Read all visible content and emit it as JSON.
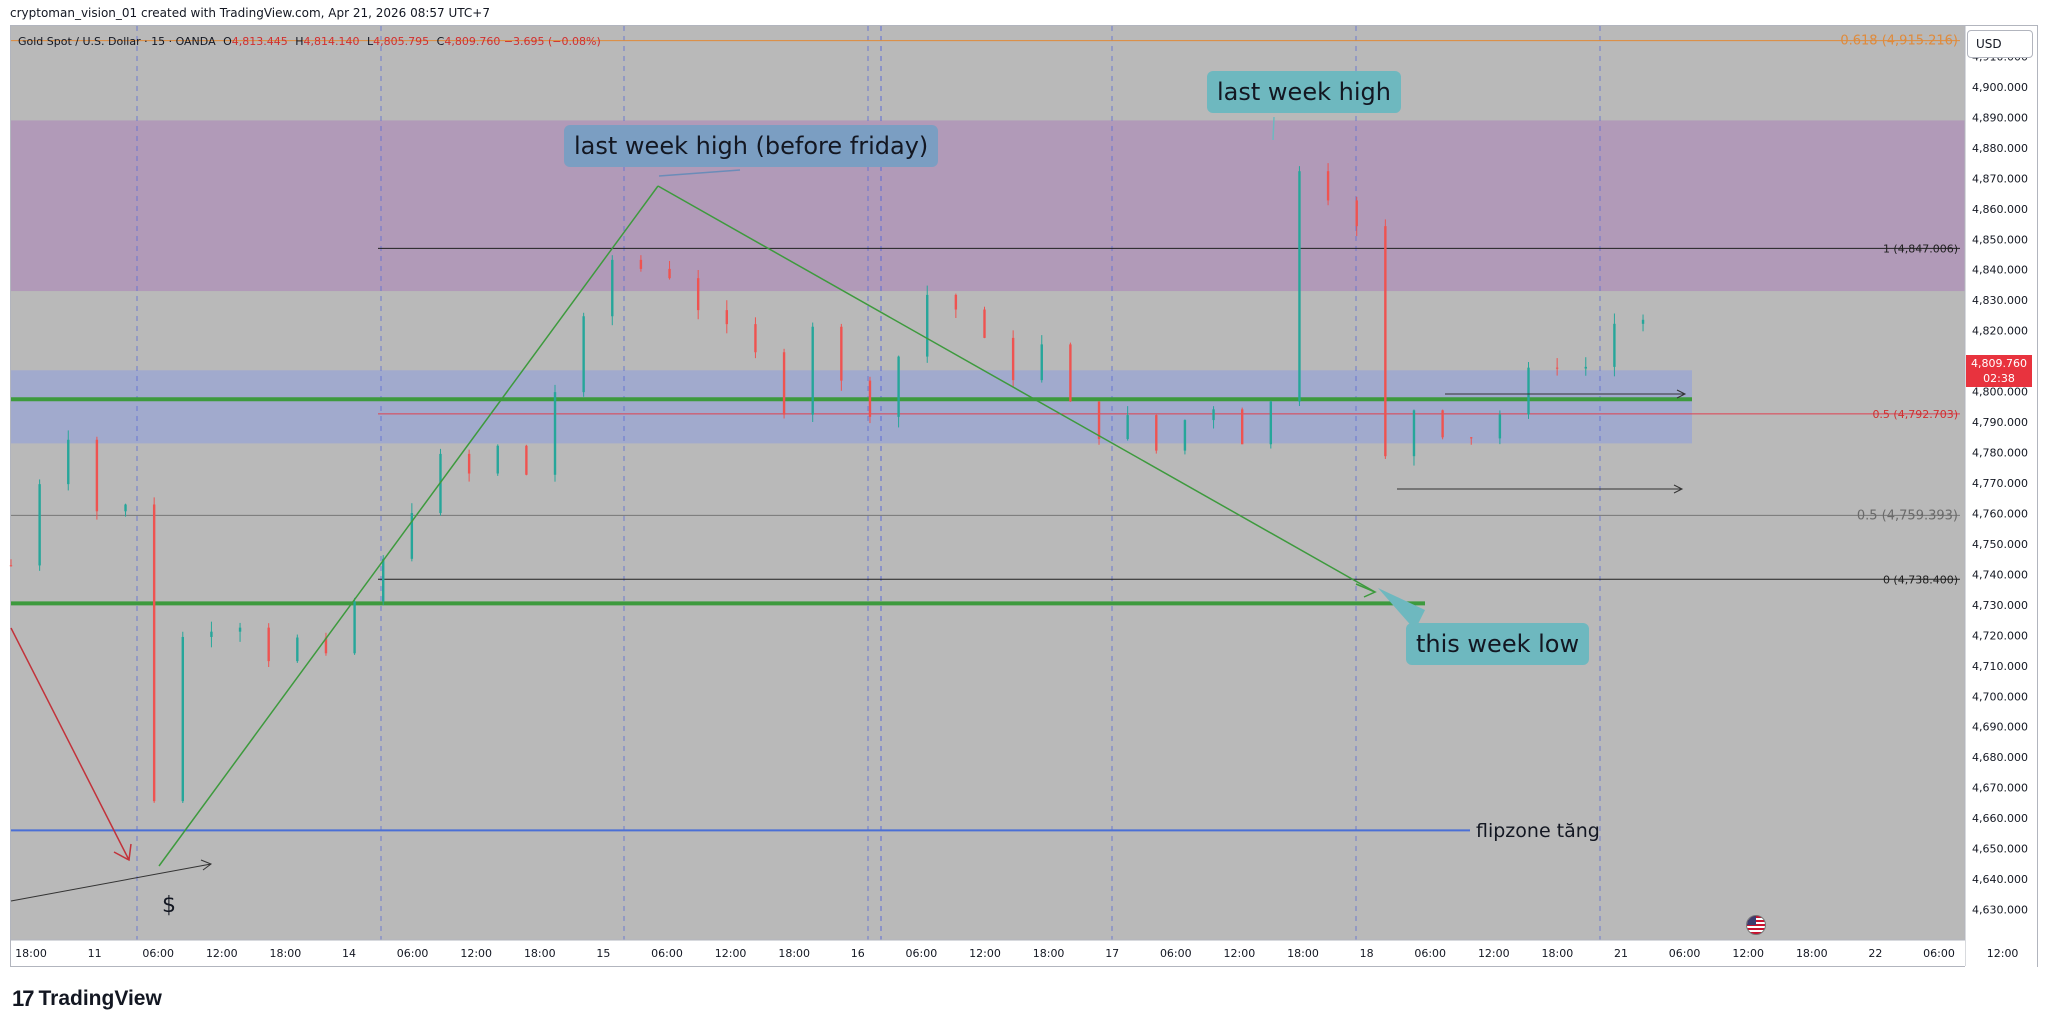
{
  "credit": "cryptoman_vision_01 created with TradingView.com, Apr 21, 2026 08:57 UTC+7",
  "legend": {
    "symbol": "Gold Spot / U.S. Dollar · 15 · OANDA",
    "o_label": "O",
    "o": "4,813.445",
    "h_label": "H",
    "h": "4,814.140",
    "l_label": "L",
    "l": "4,805.795",
    "c_label": "C",
    "c": "4,809.760",
    "change": "−3.695 (−0.08%)"
  },
  "currency_button": "USD",
  "last_price": {
    "price": "4,809.760",
    "countdown": "02:38"
  },
  "annotations": {
    "last_week_high_before_friday": "last week high (before friday)",
    "last_week_high": "last week high",
    "this_week_low": "this week low",
    "flipzone": "flipzone tăng",
    "dollar": "$"
  },
  "brand": "TradingView",
  "icons": {
    "logo": "tradingview-logo-icon",
    "flag": "us-flag-icon"
  },
  "colors": {
    "background": "#b9b9b9",
    "up_candle": "#26a69a",
    "down_candle": "#ef5350",
    "purple_zone": "#b097b8",
    "blue_zone": "#9fa8cf",
    "green_line": "#3d9a3d",
    "flip_line": "#4a6fd6",
    "red_arrow": "#c2323a",
    "last_price": "#e8333e"
  },
  "chart_data": {
    "type": "candlestick",
    "symbol": "Gold Spot / U.S. Dollar",
    "timeframe": "15",
    "ylim": [
      4620,
      4920
    ],
    "y_ticks": [
      "4,630.000",
      "4,640.000",
      "4,650.000",
      "4,660.000",
      "4,670.000",
      "4,680.000",
      "4,690.000",
      "4,700.000",
      "4,710.000",
      "4,720.000",
      "4,730.000",
      "4,740.000",
      "4,750.000",
      "4,760.000",
      "4,770.000",
      "4,780.000",
      "4,790.000",
      "4,800.000",
      "4,810.000",
      "4,820.000",
      "4,830.000",
      "4,840.000",
      "4,850.000",
      "4,860.000",
      "4,870.000",
      "4,880.000",
      "4,890.000",
      "4,900.000",
      "4,910.000"
    ],
    "x_ticks": [
      "18:00",
      "11",
      "06:00",
      "12:00",
      "18:00",
      "14",
      "06:00",
      "12:00",
      "18:00",
      "15",
      "06:00",
      "12:00",
      "18:00",
      "16",
      "06:00",
      "12:00",
      "18:00",
      "17",
      "06:00",
      "12:00",
      "18:00",
      "18",
      "06:00",
      "12:00",
      "18:00",
      "21",
      "06:00",
      "12:00",
      "18:00",
      "22",
      "06:00",
      "12:00"
    ],
    "fib_levels": [
      {
        "label": "0.618 (4,915.216)",
        "value": 4915.216
      },
      {
        "label": "1 (4,847.006)",
        "value": 4847.006
      },
      {
        "label": "0.5 (4,792.703)",
        "value": 4792.703
      },
      {
        "label": "0.5 (4,759.393)",
        "value": 4759.393
      },
      {
        "label": "0 (4,738.400)",
        "value": 4738.4
      }
    ],
    "zones": [
      {
        "name": "purple",
        "top": 4889,
        "bottom": 4833
      },
      {
        "name": "blue",
        "top": 4807,
        "bottom": 4783
      }
    ],
    "horizontal_lines": [
      {
        "name": "green_upper",
        "value": 4797.5
      },
      {
        "name": "green_lower",
        "value": 4730.5
      },
      {
        "name": "flipzone",
        "value": 4656
      }
    ],
    "key_points": [
      {
        "x": "11 06:00",
        "y": 4652
      },
      {
        "x": "15 06:00",
        "y": 4851
      },
      {
        "x": "15 08:00",
        "y": 4869
      },
      {
        "x": "17 18:00",
        "y": 4886
      },
      {
        "x": "18 03:00",
        "y": 4738
      },
      {
        "x": "21 06:00",
        "y": 4831
      },
      {
        "x": "21 08:45",
        "y": 4809.76
      }
    ],
    "close_path": [
      [
        0,
        4743
      ],
      [
        0.8,
        4760
      ],
      [
        2.2,
        4785
      ],
      [
        2.8,
        4788
      ],
      [
        3.5,
        4770
      ],
      [
        4.1,
        4760
      ],
      [
        5.5,
        4770
      ],
      [
        6.0,
        4750
      ],
      [
        6.5,
        4660
      ],
      [
        6.8,
        4652
      ],
      [
        7.4,
        4680
      ],
      [
        8.0,
        4718
      ],
      [
        9.0,
        4720
      ],
      [
        11.0,
        4728
      ],
      [
        13.0,
        4712
      ],
      [
        15.0,
        4722
      ],
      [
        16.0,
        4706
      ],
      [
        17.0,
        4730
      ],
      [
        18.4,
        4742
      ],
      [
        19.5,
        4755
      ],
      [
        20.5,
        4772
      ],
      [
        21.5,
        4778
      ],
      [
        22.5,
        4765
      ],
      [
        23.5,
        4790
      ],
      [
        24.5,
        4778
      ],
      [
        25.5,
        4770
      ],
      [
        26.5,
        4790
      ],
      [
        27.5,
        4808
      ],
      [
        28.5,
        4822
      ],
      [
        29.5,
        4840
      ],
      [
        30.8,
        4850
      ],
      [
        31.5,
        4838
      ],
      [
        32.5,
        4834
      ],
      [
        33.3,
        4848
      ],
      [
        33.9,
        4830
      ],
      [
        35.5,
        4820
      ],
      [
        37.0,
        4812
      ],
      [
        38.5,
        4795
      ],
      [
        40.0,
        4825
      ],
      [
        41.0,
        4805
      ],
      [
        42.5,
        4792
      ],
      [
        44.0,
        4808
      ],
      [
        45.0,
        4830
      ],
      [
        46.5,
        4835
      ],
      [
        47.5,
        4820
      ],
      [
        48.5,
        4815
      ],
      [
        50.0,
        4805
      ],
      [
        51.5,
        4816
      ],
      [
        53.0,
        4790
      ],
      [
        54.5,
        4786
      ],
      [
        56.0,
        4792
      ],
      [
        57.5,
        4775
      ],
      [
        58.5,
        4792
      ],
      [
        59.5,
        4800
      ],
      [
        60.5,
        4788
      ],
      [
        61.5,
        4784
      ],
      [
        62.5,
        4788
      ],
      [
        63.3,
        4820
      ],
      [
        63.7,
        4880
      ],
      [
        64.5,
        4870
      ],
      [
        65.5,
        4866
      ],
      [
        66.5,
        4860
      ],
      [
        67.5,
        4845
      ],
      [
        67.9,
        4832
      ],
      [
        68.1,
        4785
      ],
      [
        68.7,
        4770
      ],
      [
        69.0,
        4750
      ],
      [
        69.5,
        4770
      ],
      [
        70.0,
        4808
      ],
      [
        71.0,
        4788
      ],
      [
        72.5,
        4785
      ],
      [
        74.0,
        4792
      ],
      [
        75.5,
        4805
      ],
      [
        76.5,
        4822
      ],
      [
        77.5,
        4795
      ],
      [
        78.5,
        4810
      ],
      [
        79.5,
        4818
      ],
      [
        80.3,
        4830
      ],
      [
        81.0,
        4826
      ],
      [
        81.7,
        4820
      ],
      [
        82.2,
        4810
      ]
    ]
  }
}
